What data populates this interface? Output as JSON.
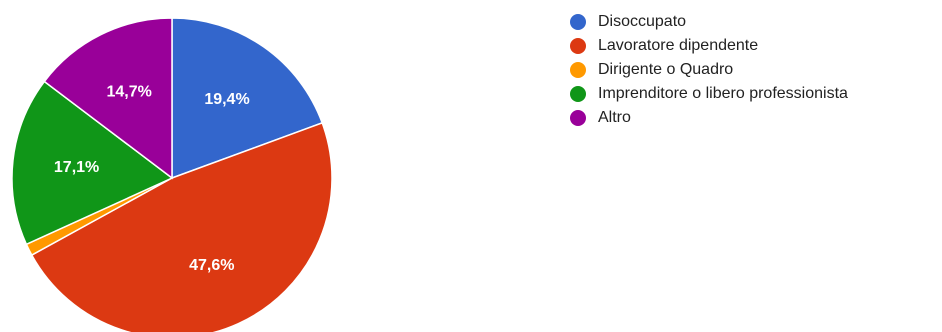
{
  "chart_data": {
    "type": "pie",
    "categories": [
      "Disoccupato",
      "Lavoratore dipendente",
      "Dirigente o Quadro",
      "Imprenditore o libero professionista",
      "Altro"
    ],
    "values": [
      19.4,
      47.6,
      1.2,
      17.1,
      14.7
    ],
    "value_labels": [
      "19,4%",
      "47,6%",
      "",
      "17,1%",
      "14,7%"
    ],
    "colors": [
      "#3366cc",
      "#dc3912",
      "#ff9900",
      "#109618",
      "#990099"
    ],
    "legend_position": "right",
    "start_angle_deg": 90,
    "direction": "clockwise"
  }
}
